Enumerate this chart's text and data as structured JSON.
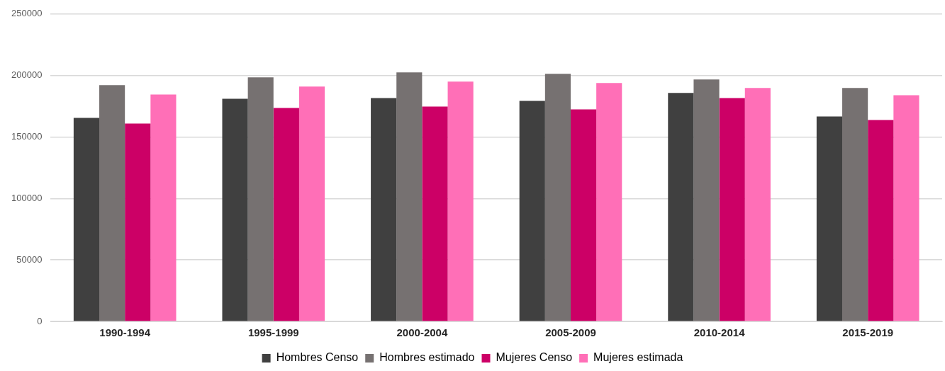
{
  "chart_data": {
    "type": "bar",
    "categories": [
      "1990-1994",
      "1995-1999",
      "2000-2004",
      "2005-2009",
      "2010-2014",
      "2015-2019"
    ],
    "series": [
      {
        "name": "Hombres Censo",
        "color": "#404040",
        "values": [
          165500,
          181100,
          181700,
          179400,
          185800,
          166700
        ]
      },
      {
        "name": "Hombres estimado",
        "color": "#767171",
        "values": [
          192100,
          198500,
          202500,
          201400,
          196800,
          189800
        ]
      },
      {
        "name": "Mujeres Censo",
        "color": "#cc0066",
        "values": [
          160900,
          173600,
          174800,
          172500,
          181700,
          163800
        ]
      },
      {
        "name": "Mujeres estimada",
        "color": "#ff6fb7",
        "values": [
          184600,
          191000,
          195000,
          193900,
          189800,
          184000
        ]
      }
    ],
    "ylim": [
      0,
      250000
    ],
    "yticks": [
      0,
      50000,
      100000,
      150000,
      200000,
      250000
    ],
    "grid": "y",
    "legend": "bottom"
  }
}
